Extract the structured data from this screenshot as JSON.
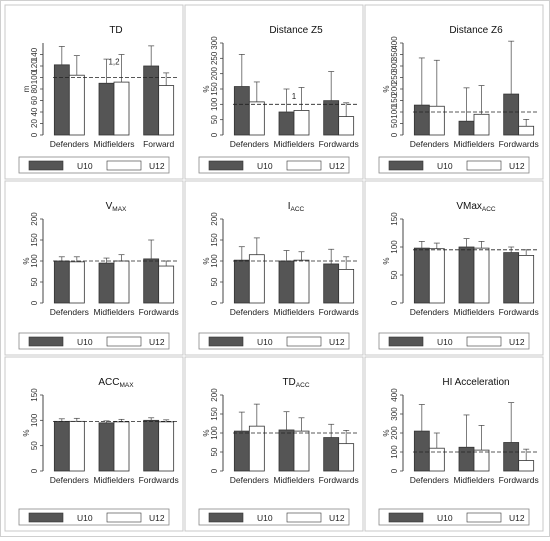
{
  "legend_labels": {
    "a": "U10",
    "b": "U12"
  },
  "colors": {
    "dark": "#555555",
    "light": "#ffffff",
    "stroke": "#333333",
    "axis": "#444444",
    "grid": "#999999",
    "frame": "#c8c8c8"
  },
  "chart_data": [
    {
      "type": "bar",
      "title": "TD",
      "title_sub": "",
      "ylabel": "m",
      "ylim": [
        0,
        160
      ],
      "yticks": [
        0,
        20,
        40,
        60,
        80,
        100,
        120,
        140
      ],
      "reference_line": 100,
      "categories": [
        "Defenders",
        "Midfielders",
        "Forward"
      ],
      "series": [
        {
          "name": "U10",
          "values": [
            122,
            90,
            120
          ],
          "errors": [
            32,
            42,
            35
          ]
        },
        {
          "name": "U12",
          "values": [
            104,
            92,
            86
          ],
          "errors": [
            34,
            48,
            22
          ]
        }
      ],
      "annotations": [
        {
          "category": 1,
          "series": 1,
          "text": "1,2"
        }
      ]
    },
    {
      "type": "bar",
      "title": "Distance Z5",
      "title_sub": "",
      "ylabel": "%",
      "ylim": [
        0,
        300
      ],
      "yticks": [
        0,
        50,
        100,
        150,
        200,
        250,
        300
      ],
      "reference_line": 100,
      "categories": [
        "Defenders",
        "Midfielders",
        "Fordwards"
      ],
      "series": [
        {
          "name": "U10",
          "values": [
            158,
            75,
            112
          ],
          "errors": [
            105,
            75,
            95
          ]
        },
        {
          "name": "U12",
          "values": [
            108,
            80,
            60
          ],
          "errors": [
            65,
            75,
            45
          ]
        }
      ],
      "annotations": [
        {
          "category": 1,
          "series": 0,
          "text": "1"
        }
      ]
    },
    {
      "type": "bar",
      "title": "Distance Z6",
      "title_sub": "",
      "ylabel": "%",
      "ylim": [
        0,
        400
      ],
      "yticks": [
        0,
        50,
        100,
        150,
        200,
        250,
        300,
        350,
        400
      ],
      "reference_line": 100,
      "categories": [
        "Defenders",
        "Midfielders",
        "Fordwards"
      ],
      "series": [
        {
          "name": "U10",
          "values": [
            130,
            60,
            178
          ],
          "errors": [
            205,
            145,
            295
          ]
        },
        {
          "name": "U12",
          "values": [
            125,
            90,
            38
          ],
          "errors": [
            200,
            125,
            30
          ]
        }
      ],
      "annotations": []
    },
    {
      "type": "bar",
      "title": "V",
      "title_sub": "MAX",
      "ylabel": "%",
      "ylim": [
        0,
        200
      ],
      "yticks": [
        0,
        50,
        100,
        150,
        200
      ],
      "reference_line": 100,
      "categories": [
        "Defenders",
        "Midfielders",
        "Fordwards"
      ],
      "series": [
        {
          "name": "U10",
          "values": [
            100,
            95,
            105
          ],
          "errors": [
            10,
            12,
            45
          ]
        },
        {
          "name": "U12",
          "values": [
            98,
            100,
            88
          ],
          "errors": [
            12,
            15,
            12
          ]
        }
      ],
      "annotations": []
    },
    {
      "type": "bar",
      "title": "I",
      "title_sub": "ACC",
      "ylabel": "%",
      "ylim": [
        0,
        200
      ],
      "yticks": [
        0,
        50,
        100,
        150,
        200
      ],
      "reference_line": 100,
      "categories": [
        "Defenders",
        "Midfielders",
        "Fordwards"
      ],
      "series": [
        {
          "name": "U10",
          "values": [
            102,
            100,
            93
          ],
          "errors": [
            32,
            25,
            35
          ]
        },
        {
          "name": "U12",
          "values": [
            115,
            102,
            80
          ],
          "errors": [
            40,
            20,
            30
          ]
        }
      ],
      "annotations": []
    },
    {
      "type": "bar",
      "title": "VMax",
      "title_sub": "ACC",
      "ylabel": "%",
      "ylim": [
        0,
        150
      ],
      "yticks": [
        0,
        50,
        100,
        150
      ],
      "reference_line": 95,
      "categories": [
        "Defenders",
        "Midfielders",
        "Fordwards"
      ],
      "series": [
        {
          "name": "U10",
          "values": [
            98,
            100,
            90
          ],
          "errors": [
            12,
            15,
            10
          ]
        },
        {
          "name": "U12",
          "values": [
            97,
            98,
            85
          ],
          "errors": [
            10,
            12,
            10
          ]
        }
      ],
      "annotations": []
    },
    {
      "type": "bar",
      "title": "ACC",
      "title_sub": "MAX",
      "ylabel": "%",
      "ylim": [
        0,
        150
      ],
      "yticks": [
        0,
        50,
        100,
        150
      ],
      "reference_line": 98,
      "categories": [
        "Defenders",
        "Midfielders",
        "Fordwards"
      ],
      "series": [
        {
          "name": "U10",
          "values": [
            98,
            95,
            100
          ],
          "errors": [
            5,
            4,
            5
          ]
        },
        {
          "name": "U12",
          "values": [
            98,
            97,
            97
          ],
          "errors": [
            6,
            5,
            4
          ]
        }
      ],
      "annotations": []
    },
    {
      "type": "bar",
      "title": "TD",
      "title_sub": "ACC",
      "ylabel": "%",
      "ylim": [
        0,
        200
      ],
      "yticks": [
        0,
        50,
        100,
        150,
        200
      ],
      "reference_line": 100,
      "categories": [
        "Defenders",
        "Midfielders",
        "Fordwards"
      ],
      "series": [
        {
          "name": "U10",
          "values": [
            105,
            108,
            88
          ],
          "errors": [
            50,
            48,
            35
          ]
        },
        {
          "name": "U12",
          "values": [
            118,
            105,
            72
          ],
          "errors": [
            58,
            35,
            35
          ]
        }
      ],
      "annotations": []
    },
    {
      "type": "bar",
      "title": "HI Acceleration",
      "title_sub": "",
      "ylabel": "%",
      "ylim": [
        0,
        400
      ],
      "yticks": [
        0,
        100,
        200,
        300,
        400
      ],
      "reference_line": 100,
      "categories": [
        "Defenders",
        "Midfielders",
        "Fordwards"
      ],
      "series": [
        {
          "name": "U10",
          "values": [
            210,
            125,
            150
          ],
          "errors": [
            140,
            170,
            210
          ]
        },
        {
          "name": "U12",
          "values": [
            120,
            110,
            55
          ],
          "errors": [
            80,
            130,
            60
          ]
        }
      ],
      "annotations": []
    }
  ]
}
